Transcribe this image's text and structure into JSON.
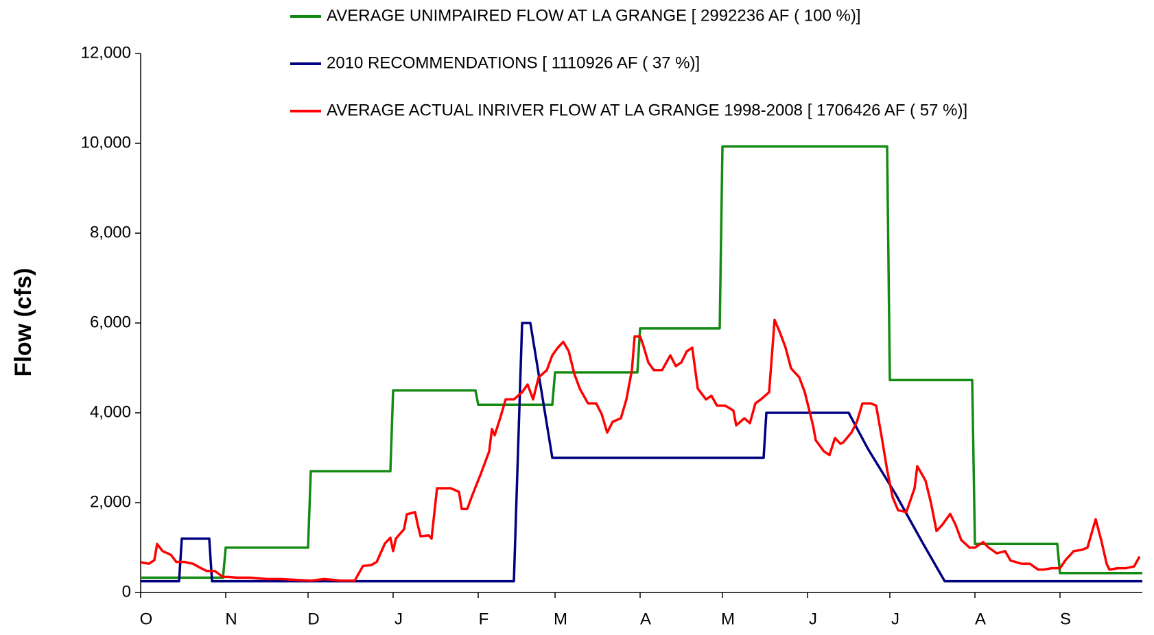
{
  "chart_data": {
    "type": "line",
    "y_label": "Flow (cfs)",
    "xlim": [
      0,
      365
    ],
    "xticks": [
      {
        "value": 0,
        "label": "O"
      },
      {
        "value": 31,
        "label": "N"
      },
      {
        "value": 61,
        "label": "D"
      },
      {
        "value": 92,
        "label": "J"
      },
      {
        "value": 123,
        "label": "F"
      },
      {
        "value": 151,
        "label": "M"
      },
      {
        "value": 182,
        "label": "A"
      },
      {
        "value": 212,
        "label": "M"
      },
      {
        "value": 243,
        "label": "J"
      },
      {
        "value": 273,
        "label": "J"
      },
      {
        "value": 304,
        "label": "A"
      },
      {
        "value": 335,
        "label": "S"
      }
    ],
    "ylim": [
      0,
      12000
    ],
    "yticks": [
      0,
      {
        "value": 2000,
        "label": "2,000"
      },
      {
        "value": 4000,
        "label": "4,000"
      },
      {
        "value": 6000,
        "label": "6,000"
      },
      {
        "value": 8000,
        "label": "8,000"
      },
      {
        "value": 10000,
        "label": "10,000"
      },
      {
        "value": 12000,
        "label": "12,000"
      }
    ],
    "grid": false,
    "legend": "top",
    "series": [
      {
        "name": "AVERAGE UNIMPAIRED FLOW AT LA GRANGE [ 2992236 AF ( 100 %)]",
        "color": "#138a13",
        "x": [
          0,
          30,
          31,
          61,
          62,
          91,
          92,
          122,
          123,
          150,
          151,
          181,
          182,
          211,
          212,
          272,
          273,
          303,
          304,
          334,
          335,
          365
        ],
        "values": [
          330,
          330,
          1000,
          1000,
          2700,
          2700,
          4500,
          4500,
          4180,
          4180,
          4900,
          4900,
          5880,
          5880,
          9930,
          9930,
          4730,
          4730,
          1080,
          1080,
          430,
          430
        ]
      },
      {
        "name": "2010 RECOMMENDATIONS [ 1110926 AF ( 37 %)]",
        "color": "#000080",
        "x": [
          0,
          14,
          15,
          25,
          26,
          136,
          139,
          142,
          150,
          227,
          228,
          258,
          265,
          275,
          285,
          293,
          365
        ],
        "values": [
          250,
          250,
          1200,
          1200,
          250,
          250,
          6000,
          6000,
          3000,
          3000,
          4000,
          4000,
          3200,
          2200,
          1100,
          250,
          250
        ]
      },
      {
        "name": "AVERAGE ACTUAL INRIVER FLOW AT LA GRANGE 1998-2008 [ 1706426 AF ( 57 %)]",
        "color": "#ff0000",
        "x": [
          0,
          3,
          5,
          6,
          8,
          11,
          13,
          16,
          19,
          22,
          24,
          27,
          30,
          32,
          35,
          40,
          46,
          51,
          57,
          62,
          67,
          73,
          78,
          81,
          84,
          86,
          89,
          91,
          92,
          93,
          96,
          97,
          100,
          101,
          102,
          105,
          106,
          108,
          110,
          113,
          116,
          117,
          119,
          121,
          124,
          127,
          128,
          129,
          131,
          133,
          136,
          139,
          141,
          143,
          145,
          148,
          150,
          152,
          154,
          156,
          158,
          160,
          163,
          166,
          168,
          170,
          172,
          175,
          177,
          179,
          180,
          182,
          183,
          185,
          187,
          190,
          193,
          195,
          197,
          199,
          201,
          203,
          206,
          208,
          210,
          213,
          216,
          217,
          220,
          222,
          224,
          226,
          229,
          231,
          233,
          235,
          237,
          240,
          242,
          245,
          246,
          249,
          251,
          253,
          255,
          256,
          259,
          261,
          263,
          266,
          268,
          270,
          272,
          274,
          276,
          279,
          282,
          283,
          286,
          288,
          290,
          292,
          295,
          297,
          299,
          302,
          304,
          307,
          309,
          312,
          315,
          317,
          321,
          324,
          327,
          329,
          332,
          335,
          337,
          340,
          343,
          345,
          348,
          350,
          352,
          353,
          356,
          359,
          362,
          364
        ],
        "values": [
          675,
          640,
          720,
          1080,
          920,
          840,
          680,
          680,
          640,
          540,
          480,
          480,
          345,
          345,
          330,
          330,
          300,
          300,
          280,
          263,
          300,
          263,
          263,
          590,
          610,
          680,
          1090,
          1220,
          920,
          1200,
          1410,
          1740,
          1790,
          1500,
          1250,
          1270,
          1200,
          2320,
          2320,
          2320,
          2240,
          1860,
          1860,
          2190,
          2650,
          3140,
          3640,
          3500,
          3880,
          4300,
          4300,
          4460,
          4630,
          4300,
          4790,
          4950,
          5280,
          5450,
          5580,
          5370,
          4870,
          4540,
          4210,
          4210,
          3970,
          3560,
          3800,
          3880,
          4300,
          4950,
          5700,
          5700,
          5530,
          5120,
          4950,
          4950,
          5280,
          5040,
          5120,
          5370,
          5450,
          4540,
          4300,
          4380,
          4160,
          4160,
          4050,
          3720,
          3880,
          3770,
          4210,
          4300,
          4460,
          6070,
          5780,
          5450,
          4990,
          4790,
          4460,
          3720,
          3390,
          3140,
          3060,
          3440,
          3310,
          3340,
          3560,
          3800,
          4210,
          4210,
          4160,
          3470,
          2730,
          2120,
          1830,
          1790,
          2320,
          2810,
          2490,
          1990,
          1370,
          1500,
          1750,
          1500,
          1170,
          1000,
          1000,
          1120,
          1000,
          870,
          920,
          710,
          640,
          640,
          510,
          510,
          540,
          540,
          720,
          920,
          950,
          1000,
          1630,
          1170,
          640,
          510,
          540,
          540,
          580,
          800
        ]
      }
    ]
  }
}
